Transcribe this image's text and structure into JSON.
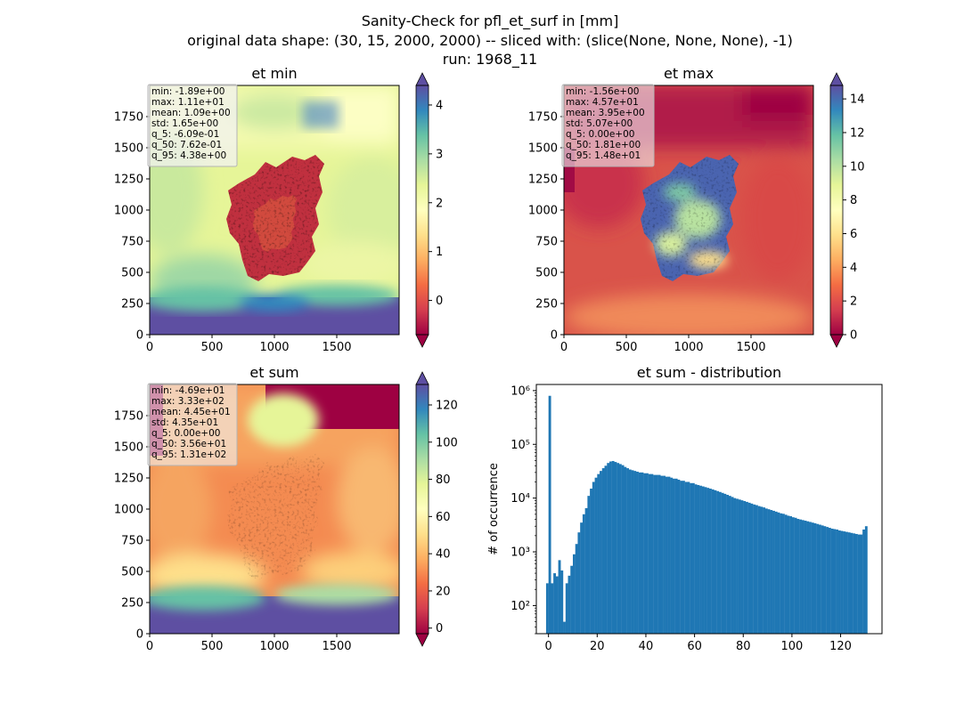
{
  "figure": {
    "title_lines": [
      "Sanity-Check for pfl_et_surf in [mm]",
      "original data shape: (30, 15, 2000, 2000) -- sliced with: (slice(None, None, None), -1)",
      "run: 1968_11"
    ]
  },
  "chart_data": [
    {
      "type": "heatmap",
      "title": "et min",
      "xlabel": "",
      "ylabel": "",
      "xlim": [
        0,
        2000
      ],
      "ylim": [
        0,
        2000
      ],
      "xticks": [
        0,
        500,
        1000,
        1500
      ],
      "yticks": [
        0,
        250,
        500,
        750,
        1000,
        1250,
        1500,
        1750
      ],
      "colormap": "Spectral",
      "colorbar": {
        "min": -0.7,
        "max": 4.4,
        "ticks": [
          0,
          1,
          2,
          3,
          4
        ],
        "extend": "both"
      },
      "stats": [
        "min: -1.89e+00",
        "max: 1.11e+01",
        "mean: 1.09e+00",
        "std: 1.65e+00",
        "q_5: -6.09e-01",
        "q_50: 7.62e-01",
        "q_95: 4.38e+00"
      ]
    },
    {
      "type": "heatmap",
      "title": "et max",
      "xlabel": "",
      "ylabel": "",
      "xlim": [
        0,
        2000
      ],
      "ylim": [
        0,
        2000
      ],
      "xticks": [
        0,
        500,
        1000,
        1500
      ],
      "yticks": [
        0,
        250,
        500,
        750,
        1000,
        1250,
        1500,
        1750
      ],
      "colormap": "Spectral",
      "colorbar": {
        "min": 0,
        "max": 14.8,
        "ticks": [
          0,
          2,
          4,
          6,
          8,
          10,
          12,
          14
        ],
        "extend": "both"
      },
      "stats": [
        "min: -1.56e+00",
        "max: 4.57e+01",
        "mean: 3.95e+00",
        "std: 5.07e+00",
        "q_5: 0.00e+00",
        "q_50: 1.81e+00",
        "q_95: 1.48e+01"
      ]
    },
    {
      "type": "heatmap",
      "title": "et sum",
      "xlabel": "",
      "ylabel": "",
      "xlim": [
        0,
        2000
      ],
      "ylim": [
        0,
        2000
      ],
      "xticks": [
        0,
        500,
        1000,
        1500
      ],
      "yticks": [
        0,
        250,
        500,
        750,
        1000,
        1250,
        1500,
        1750
      ],
      "colormap": "Spectral",
      "colorbar": {
        "min": -3,
        "max": 131,
        "ticks": [
          0,
          20,
          40,
          60,
          80,
          100,
          120
        ],
        "extend": "both"
      },
      "stats": [
        "min: -4.69e+01",
        "max: 3.33e+02",
        "mean: 4.45e+01",
        "std: 4.35e+01",
        "q_5: 0.00e+00",
        "q_50: 3.56e+01",
        "q_95: 1.31e+02"
      ]
    },
    {
      "type": "bar",
      "title": "et sum - distribution",
      "xlabel": "",
      "ylabel": "# of occurrence",
      "yscale": "log",
      "xlim": [
        -5,
        137
      ],
      "ylim": [
        30,
        1300000
      ],
      "xticks": [
        0,
        20,
        40,
        60,
        80,
        100,
        120
      ],
      "yticks": [
        {
          "value": 100,
          "label": "10²"
        },
        {
          "value": 1000,
          "label": "10³"
        },
        {
          "value": 10000,
          "label": "10⁴"
        },
        {
          "value": 100000,
          "label": "10⁵"
        },
        {
          "value": 1000000,
          "label": "10⁶"
        }
      ],
      "color": "#1f77b4",
      "bins": [
        [
          -1,
          0,
          260
        ],
        [
          0,
          1,
          800000
        ],
        [
          1,
          2,
          260
        ],
        [
          2,
          3,
          400
        ],
        [
          3,
          4,
          350
        ],
        [
          4,
          5,
          700
        ],
        [
          5,
          6,
          450
        ],
        [
          6,
          7,
          50
        ],
        [
          7,
          8,
          260
        ],
        [
          8,
          9,
          360
        ],
        [
          9,
          10,
          550
        ],
        [
          10,
          11,
          900
        ],
        [
          11,
          12,
          1400
        ],
        [
          12,
          13,
          2300
        ],
        [
          13,
          14,
          3500
        ],
        [
          14,
          15,
          5000
        ],
        [
          15,
          16,
          6500
        ],
        [
          16,
          17,
          11000
        ],
        [
          17,
          18,
          15000
        ],
        [
          18,
          19,
          20000
        ],
        [
          19,
          20,
          24000
        ],
        [
          20,
          21,
          28000
        ],
        [
          21,
          22,
          32000
        ],
        [
          22,
          23,
          36000
        ],
        [
          23,
          24,
          40000
        ],
        [
          24,
          25,
          45000
        ],
        [
          25,
          26,
          48000
        ],
        [
          26,
          27,
          49000
        ],
        [
          27,
          28,
          47000
        ],
        [
          28,
          29,
          45000
        ],
        [
          29,
          30,
          43000
        ],
        [
          30,
          31,
          41000
        ],
        [
          31,
          32,
          38000
        ],
        [
          32,
          33,
          36000
        ],
        [
          33,
          34,
          34000
        ],
        [
          34,
          35,
          33000
        ],
        [
          35,
          36,
          32000
        ],
        [
          36,
          37,
          31000
        ],
        [
          37,
          38,
          30000
        ],
        [
          38,
          39,
          30000
        ],
        [
          39,
          40,
          29000
        ],
        [
          40,
          41,
          29000
        ],
        [
          41,
          42,
          28000
        ],
        [
          42,
          43,
          28000
        ],
        [
          43,
          44,
          27000
        ],
        [
          44,
          45,
          27000
        ],
        [
          45,
          46,
          27000
        ],
        [
          46,
          47,
          26000
        ],
        [
          47,
          48,
          26000
        ],
        [
          48,
          49,
          25000
        ],
        [
          49,
          50,
          25000
        ],
        [
          50,
          51,
          24000
        ],
        [
          51,
          52,
          23000
        ],
        [
          52,
          53,
          23000
        ],
        [
          53,
          54,
          22000
        ],
        [
          54,
          55,
          21000
        ],
        [
          55,
          56,
          21000
        ],
        [
          56,
          57,
          20000
        ],
        [
          57,
          58,
          20000
        ],
        [
          58,
          59,
          19000
        ],
        [
          59,
          60,
          19000
        ],
        [
          60,
          61,
          18000
        ],
        [
          61,
          62,
          17500
        ],
        [
          62,
          63,
          17000
        ],
        [
          63,
          64,
          16500
        ],
        [
          64,
          65,
          16000
        ],
        [
          65,
          66,
          15500
        ],
        [
          66,
          67,
          15000
        ],
        [
          67,
          68,
          14500
        ],
        [
          68,
          69,
          14000
        ],
        [
          69,
          70,
          13500
        ],
        [
          70,
          71,
          13000
        ],
        [
          71,
          72,
          12500
        ],
        [
          72,
          73,
          12000
        ],
        [
          73,
          74,
          11500
        ],
        [
          74,
          75,
          11000
        ],
        [
          75,
          76,
          10500
        ],
        [
          76,
          77,
          10000
        ],
        [
          77,
          78,
          9700
        ],
        [
          78,
          79,
          9400
        ],
        [
          79,
          80,
          9100
        ],
        [
          80,
          81,
          8800
        ],
        [
          81,
          82,
          8500
        ],
        [
          82,
          83,
          8200
        ],
        [
          83,
          84,
          7900
        ],
        [
          84,
          85,
          7600
        ],
        [
          85,
          86,
          7400
        ],
        [
          86,
          87,
          7100
        ],
        [
          87,
          88,
          6900
        ],
        [
          88,
          89,
          6700
        ],
        [
          89,
          90,
          6400
        ],
        [
          90,
          91,
          6200
        ],
        [
          91,
          92,
          6000
        ],
        [
          92,
          93,
          5800
        ],
        [
          93,
          94,
          5600
        ],
        [
          94,
          95,
          5400
        ],
        [
          95,
          96,
          5200
        ],
        [
          96,
          97,
          5100
        ],
        [
          97,
          98,
          4900
        ],
        [
          98,
          99,
          4700
        ],
        [
          99,
          100,
          4600
        ],
        [
          100,
          101,
          4400
        ],
        [
          101,
          102,
          4300
        ],
        [
          102,
          103,
          4100
        ],
        [
          103,
          104,
          4000
        ],
        [
          104,
          105,
          3900
        ],
        [
          105,
          106,
          3800
        ],
        [
          106,
          107,
          3700
        ],
        [
          107,
          108,
          3600
        ],
        [
          108,
          109,
          3500
        ],
        [
          109,
          110,
          3400
        ],
        [
          110,
          111,
          3300
        ],
        [
          111,
          112,
          3200
        ],
        [
          112,
          113,
          3100
        ],
        [
          113,
          114,
          3000
        ],
        [
          114,
          115,
          2900
        ],
        [
          115,
          116,
          2800
        ],
        [
          116,
          117,
          2700
        ],
        [
          117,
          118,
          2650
        ],
        [
          118,
          119,
          2600
        ],
        [
          119,
          120,
          2500
        ],
        [
          120,
          121,
          2450
        ],
        [
          121,
          122,
          2400
        ],
        [
          122,
          123,
          2350
        ],
        [
          123,
          124,
          2300
        ],
        [
          124,
          125,
          2250
        ],
        [
          125,
          126,
          2200
        ],
        [
          126,
          127,
          2150
        ],
        [
          127,
          128,
          2100
        ],
        [
          128,
          129,
          2100
        ],
        [
          129,
          130,
          2600
        ],
        [
          130,
          131,
          3000
        ]
      ]
    }
  ]
}
